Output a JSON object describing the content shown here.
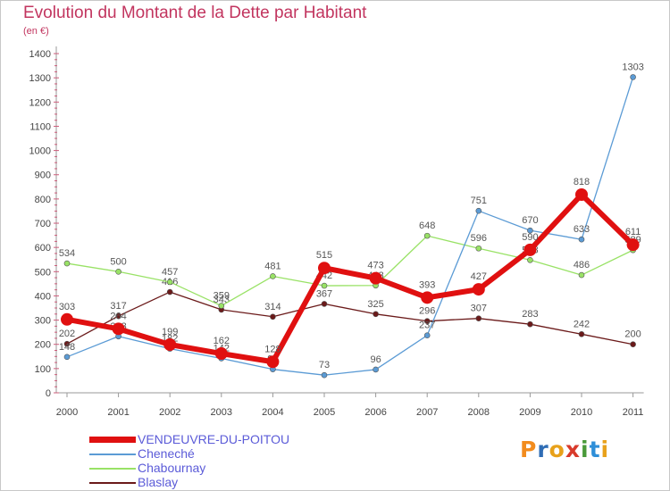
{
  "title": "Evolution du Montant de la Dette par Habitant",
  "unit": "(en €)",
  "logo": {
    "letters": [
      "P",
      "r",
      "o",
      "x",
      "i",
      "t",
      "i"
    ],
    "colors": [
      "#f28c1e",
      "#2f6db5",
      "#e8a11a",
      "#d83a2b",
      "#4a9a3a",
      "#2f8fd8",
      "#e8a11a"
    ]
  },
  "chart_data": {
    "type": "line",
    "title": "Evolution du Montant de la Dette par Habitant",
    "ylabel": "(en €)",
    "xlabel": "",
    "ylim": [
      0,
      1400
    ],
    "yticks": [
      0,
      100,
      200,
      300,
      400,
      500,
      600,
      700,
      800,
      900,
      1000,
      1100,
      1200,
      1300,
      1400
    ],
    "x": [
      "2000",
      "2001",
      "2002",
      "2003",
      "2004",
      "2005",
      "2006",
      "2007",
      "2008",
      "2009",
      "2010",
      "2011"
    ],
    "grid": false,
    "legend_position": "bottom-left",
    "series": [
      {
        "name": "Blaslay",
        "color": "#6b1a1a",
        "values": [
          202,
          317,
          416,
          343,
          314,
          367,
          325,
          296,
          307,
          283,
          242,
          200
        ]
      },
      {
        "name": "Chabournay",
        "color": "#99e266",
        "values": [
          534,
          500,
          457,
          359,
          481,
          442,
          443,
          648,
          596,
          548,
          486,
          589
        ]
      },
      {
        "name": "Cheneché",
        "color": "#5b9bd5",
        "values": [
          148,
          233,
          182,
          142,
          97,
          73,
          96,
          237,
          751,
          670,
          633,
          1303
        ]
      },
      {
        "name": "VENDEUVRE-DU-POITOU",
        "color": "#e01010",
        "values": [
          303,
          264,
          199,
          162,
          128,
          515,
          473,
          393,
          427,
          590,
          818,
          611
        ]
      }
    ]
  }
}
